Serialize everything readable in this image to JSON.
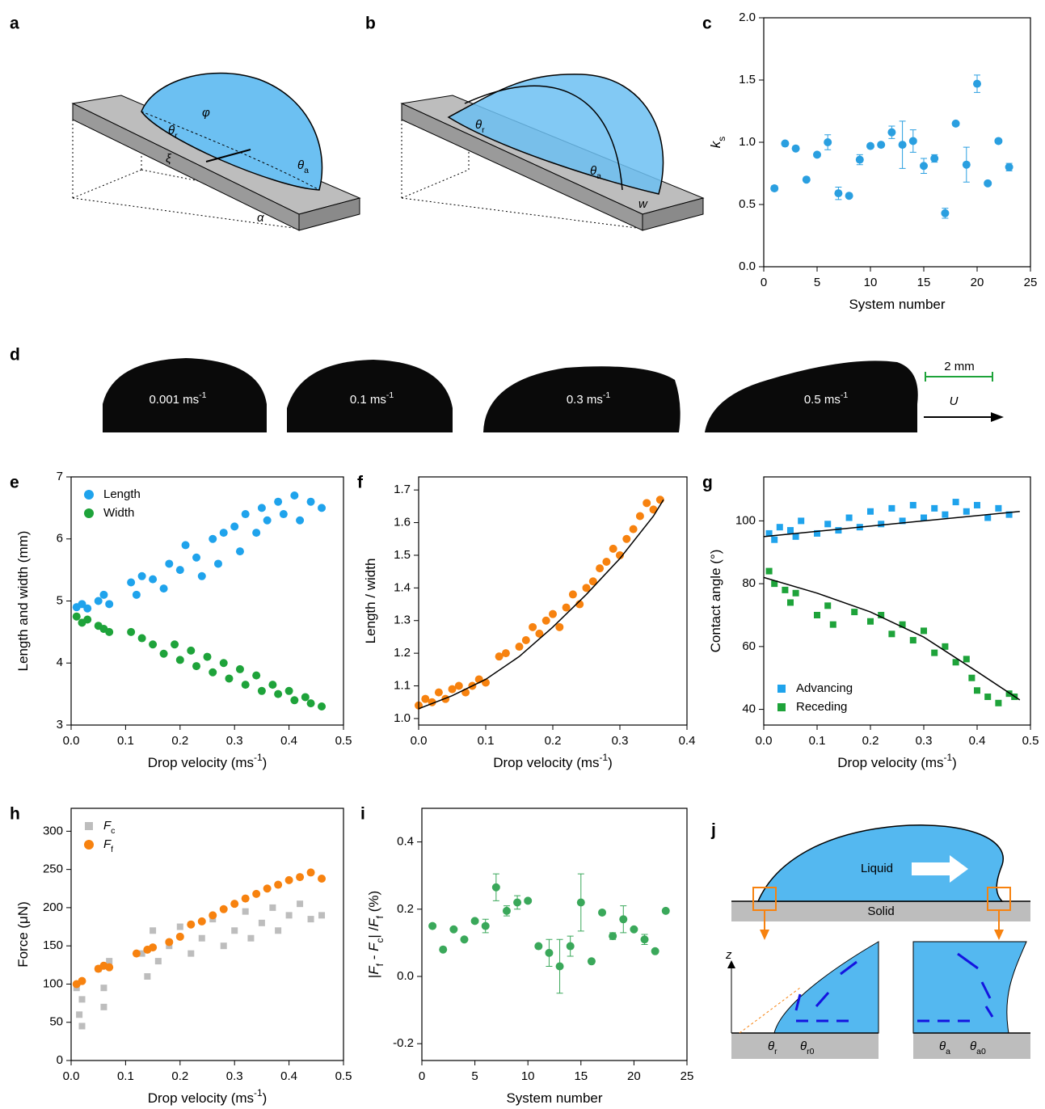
{
  "diagrams": {
    "a": {
      "panel": "a",
      "theta_r": "θr",
      "phi": "φ",
      "xi": "ξ",
      "theta_a": "θa",
      "alpha": "α"
    },
    "b": {
      "panel": "b",
      "theta_r": "θr",
      "theta_a": "θa",
      "w": "w"
    },
    "d": {
      "panel": "d",
      "speeds": [
        "0.001 ms-1",
        "0.1 ms-1",
        "0.3 ms-1",
        "0.5 ms-1"
      ],
      "scale": "2 mm",
      "direction": "U"
    },
    "j": {
      "panel": "j",
      "liquid": "Liquid",
      "solid": "Solid",
      "z": "z",
      "theta_r": "θr",
      "theta_r0": "θr0",
      "theta_a": "θa",
      "theta_a0": "θa0"
    }
  },
  "chart_data": [
    {
      "type": "scatter",
      "panel": "c",
      "x_label": "System number",
      "y_label": "ks",
      "xlim": [
        0,
        25
      ],
      "xticks": [
        0,
        5,
        10,
        15,
        20,
        25
      ],
      "ylim": [
        0,
        2
      ],
      "yticks": [
        {
          "value": 0,
          "label": "0.0"
        },
        0.5,
        {
          "value": 1,
          "label": "1.0"
        },
        1.5,
        {
          "value": 2,
          "label": "2.0"
        }
      ],
      "series": [
        {
          "color": "#2a9fe0",
          "marker": "circle",
          "x": [
            1,
            2,
            3,
            4,
            5,
            6,
            7,
            8,
            9,
            10,
            11,
            12,
            13,
            14,
            15,
            16,
            17,
            18,
            19,
            20,
            21,
            22,
            23
          ],
          "values": [
            0.63,
            0.99,
            0.95,
            0.7,
            0.9,
            1.0,
            0.59,
            0.57,
            0.86,
            0.97,
            0.98,
            1.08,
            0.98,
            1.01,
            0.81,
            0.87,
            0.43,
            1.15,
            0.82,
            1.47,
            0.67,
            1.01,
            0.8
          ],
          "errors": [
            0.02,
            null,
            null,
            null,
            null,
            0.06,
            0.05,
            null,
            0.04,
            null,
            null,
            0.05,
            0.19,
            0.09,
            0.06,
            0.03,
            0.04,
            null,
            0.14,
            0.07,
            null,
            null,
            0.03
          ]
        }
      ]
    },
    {
      "type": "scatter",
      "panel": "e",
      "x_label": "Drop velocity (ms-1)",
      "y_label": "Length and width (mm)",
      "legend": "upper left",
      "xlim": [
        0,
        0.5
      ],
      "xticks": [
        {
          "value": 0,
          "label": "0.0"
        },
        0.1,
        0.2,
        0.3,
        0.4,
        0.5
      ],
      "ylim": [
        3,
        7
      ],
      "yticks": [
        3,
        4,
        5,
        6,
        7
      ],
      "series": [
        {
          "name": "Length",
          "color": "#1fa3ec",
          "marker": "circle",
          "x": [
            0.01,
            0.02,
            0.03,
            0.05,
            0.06,
            0.07,
            0.11,
            0.12,
            0.13,
            0.15,
            0.17,
            0.18,
            0.2,
            0.21,
            0.23,
            0.24,
            0.26,
            0.27,
            0.28,
            0.3,
            0.31,
            0.32,
            0.34,
            0.35,
            0.36,
            0.38,
            0.39,
            0.41,
            0.42,
            0.44,
            0.46
          ],
          "values": [
            4.9,
            4.95,
            4.88,
            5.0,
            5.1,
            4.95,
            5.3,
            5.1,
            5.4,
            5.35,
            5.2,
            5.6,
            5.5,
            5.9,
            5.7,
            5.4,
            6.0,
            5.6,
            6.1,
            6.2,
            5.8,
            6.4,
            6.1,
            6.5,
            6.3,
            6.6,
            6.4,
            6.7,
            6.3,
            6.6,
            6.5
          ]
        },
        {
          "name": "Width",
          "color": "#1ea33a",
          "marker": "circle",
          "x": [
            0.01,
            0.02,
            0.03,
            0.05,
            0.06,
            0.07,
            0.11,
            0.13,
            0.15,
            0.17,
            0.19,
            0.2,
            0.22,
            0.23,
            0.25,
            0.26,
            0.28,
            0.29,
            0.31,
            0.32,
            0.34,
            0.35,
            0.37,
            0.38,
            0.4,
            0.41,
            0.43,
            0.44,
            0.46
          ],
          "values": [
            4.75,
            4.65,
            4.7,
            4.6,
            4.55,
            4.5,
            4.5,
            4.4,
            4.3,
            4.15,
            4.3,
            4.05,
            4.2,
            3.95,
            4.1,
            3.85,
            4.0,
            3.75,
            3.9,
            3.65,
            3.8,
            3.55,
            3.65,
            3.5,
            3.55,
            3.4,
            3.45,
            3.35,
            3.3
          ]
        }
      ]
    },
    {
      "type": "scatter",
      "panel": "f",
      "x_label": "Drop velocity (ms-1)",
      "y_label": "Length / width",
      "xlim": [
        0,
        0.4
      ],
      "xticks": [
        {
          "value": 0,
          "label": "0.0"
        },
        0.1,
        0.2,
        0.3,
        0.4
      ],
      "ylim": [
        0.98,
        1.74
      ],
      "yticks": [
        {
          "value": 1,
          "label": "1.0"
        },
        1.1,
        1.2,
        1.3,
        1.4,
        1.5,
        1.6,
        1.7
      ],
      "series": [
        {
          "color": "#f7820f",
          "marker": "circle",
          "x": [
            0,
            0.01,
            0.02,
            0.03,
            0.04,
            0.05,
            0.06,
            0.07,
            0.08,
            0.09,
            0.1,
            0.12,
            0.13,
            0.15,
            0.16,
            0.17,
            0.18,
            0.19,
            0.2,
            0.21,
            0.22,
            0.23,
            0.24,
            0.25,
            0.26,
            0.27,
            0.28,
            0.29,
            0.3,
            0.31,
            0.32,
            0.33,
            0.34,
            0.35,
            0.36
          ],
          "values": [
            1.04,
            1.06,
            1.05,
            1.08,
            1.06,
            1.09,
            1.1,
            1.08,
            1.1,
            1.12,
            1.11,
            1.19,
            1.2,
            1.22,
            1.24,
            1.28,
            1.26,
            1.3,
            1.32,
            1.28,
            1.34,
            1.38,
            1.35,
            1.4,
            1.42,
            1.46,
            1.48,
            1.52,
            1.5,
            1.55,
            1.58,
            1.62,
            1.66,
            1.64,
            1.67
          ]
        },
        {
          "type": "line",
          "color": "#000000",
          "x": [
            0,
            0.05,
            0.1,
            0.15,
            0.2,
            0.25,
            0.3,
            0.35,
            0.365
          ],
          "values": [
            1.03,
            1.07,
            1.12,
            1.19,
            1.28,
            1.38,
            1.49,
            1.62,
            1.67
          ]
        }
      ]
    },
    {
      "type": "scatter",
      "panel": "g",
      "x_label": "Drop velocity (ms-1)",
      "y_label": "Contact angle (°)",
      "legend": "lower left",
      "xlim": [
        0,
        0.5
      ],
      "xticks": [
        {
          "value": 0,
          "label": "0.0"
        },
        0.1,
        0.2,
        0.3,
        0.4,
        0.5
      ],
      "ylim": [
        35,
        114
      ],
      "yticks": [
        40,
        60,
        80,
        100
      ],
      "series": [
        {
          "name": "Advancing",
          "color": "#1fa3ec",
          "marker": "square",
          "x": [
            0.01,
            0.02,
            0.03,
            0.05,
            0.06,
            0.07,
            0.1,
            0.12,
            0.14,
            0.16,
            0.18,
            0.2,
            0.22,
            0.24,
            0.26,
            0.28,
            0.3,
            0.32,
            0.34,
            0.36,
            0.38,
            0.4,
            0.42,
            0.44,
            0.46
          ],
          "values": [
            96,
            94,
            98,
            97,
            95,
            100,
            96,
            99,
            97,
            101,
            98,
            103,
            99,
            104,
            100,
            105,
            101,
            104,
            102,
            106,
            103,
            105,
            101,
            104,
            102
          ]
        },
        {
          "name": "Receding",
          "color": "#1ea33a",
          "marker": "square",
          "x": [
            0.01,
            0.02,
            0.04,
            0.05,
            0.06,
            0.1,
            0.12,
            0.13,
            0.17,
            0.2,
            0.22,
            0.24,
            0.26,
            0.28,
            0.3,
            0.32,
            0.34,
            0.36,
            0.38,
            0.39,
            0.4,
            0.42,
            0.44,
            0.46,
            0.47
          ],
          "values": [
            84,
            80,
            78,
            74,
            77,
            70,
            73,
            67,
            71,
            68,
            70,
            64,
            67,
            62,
            65,
            58,
            60,
            55,
            56,
            50,
            46,
            44,
            42,
            45,
            44
          ]
        },
        {
          "type": "line",
          "color": "#000000",
          "x": [
            0,
            0.24,
            0.48
          ],
          "values": [
            95,
            99,
            103
          ]
        },
        {
          "type": "line",
          "color": "#000000",
          "x": [
            0,
            0.1,
            0.2,
            0.3,
            0.4,
            0.48
          ],
          "values": [
            82,
            77,
            71,
            63,
            52,
            43
          ]
        }
      ]
    },
    {
      "type": "scatter",
      "panel": "h",
      "x_label": "Drop velocity (ms-1)",
      "y_label": "Force (μN)",
      "legend": "upper left",
      "xlim": [
        0,
        0.5
      ],
      "xticks": [
        {
          "value": 0,
          "label": "0.0"
        },
        0.1,
        0.2,
        0.3,
        0.4,
        0.5
      ],
      "ylim": [
        0,
        330
      ],
      "yticks": [
        0,
        50,
        100,
        150,
        200,
        250,
        300
      ],
      "series": [
        {
          "name": "Fc",
          "color": "#bdbdbd",
          "marker": "square",
          "x": [
            0.01,
            0.015,
            0.02,
            0.02,
            0.05,
            0.06,
            0.06,
            0.07,
            0.13,
            0.14,
            0.15,
            0.16,
            0.18,
            0.2,
            0.22,
            0.24,
            0.26,
            0.28,
            0.3,
            0.32,
            0.33,
            0.35,
            0.37,
            0.38,
            0.4,
            0.42,
            0.44,
            0.46
          ],
          "values": [
            95,
            60,
            45,
            80,
            120,
            95,
            70,
            130,
            140,
            110,
            170,
            130,
            150,
            175,
            140,
            160,
            185,
            150,
            170,
            195,
            160,
            180,
            200,
            170,
            190,
            205,
            185,
            190
          ]
        },
        {
          "name": "Ff",
          "color": "#f7820f",
          "marker": "circle",
          "x": [
            0.01,
            0.02,
            0.05,
            0.06,
            0.07,
            0.12,
            0.14,
            0.15,
            0.18,
            0.2,
            0.22,
            0.24,
            0.26,
            0.28,
            0.3,
            0.32,
            0.34,
            0.36,
            0.38,
            0.4,
            0.42,
            0.44,
            0.46
          ],
          "values": [
            100,
            104,
            120,
            124,
            122,
            140,
            145,
            148,
            155,
            162,
            178,
            182,
            190,
            198,
            205,
            212,
            218,
            225,
            230,
            236,
            240,
            246,
            238
          ]
        }
      ]
    },
    {
      "type": "scatter",
      "panel": "i",
      "x_label": "System number",
      "y_label": "|Ff - Fc| /Ff (%)",
      "xlim": [
        0,
        25
      ],
      "xticks": [
        0,
        5,
        10,
        15,
        20,
        25
      ],
      "ylim": [
        -0.25,
        0.5
      ],
      "yticks": [
        -0.2,
        {
          "value": 0,
          "label": "0.0"
        },
        0.2,
        0.4
      ],
      "series": [
        {
          "color": "#3aa85a",
          "marker": "circle",
          "x": [
            1,
            2,
            3,
            4,
            5,
            6,
            7,
            8,
            9,
            10,
            11,
            12,
            13,
            14,
            15,
            16,
            17,
            18,
            19,
            20,
            21,
            22,
            23
          ],
          "values": [
            0.15,
            0.08,
            0.14,
            0.11,
            0.165,
            0.15,
            0.265,
            0.195,
            0.22,
            0.225,
            0.09,
            0.07,
            0.03,
            0.09,
            0.22,
            0.045,
            0.19,
            0.12,
            0.17,
            0.14,
            0.11,
            0.075,
            0.195
          ],
          "errors": [
            null,
            null,
            null,
            null,
            null,
            0.02,
            0.04,
            0.015,
            0.02,
            null,
            null,
            0.04,
            0.08,
            0.03,
            0.085,
            null,
            null,
            0.01,
            0.04,
            null,
            0.015,
            null,
            null
          ]
        }
      ]
    }
  ]
}
